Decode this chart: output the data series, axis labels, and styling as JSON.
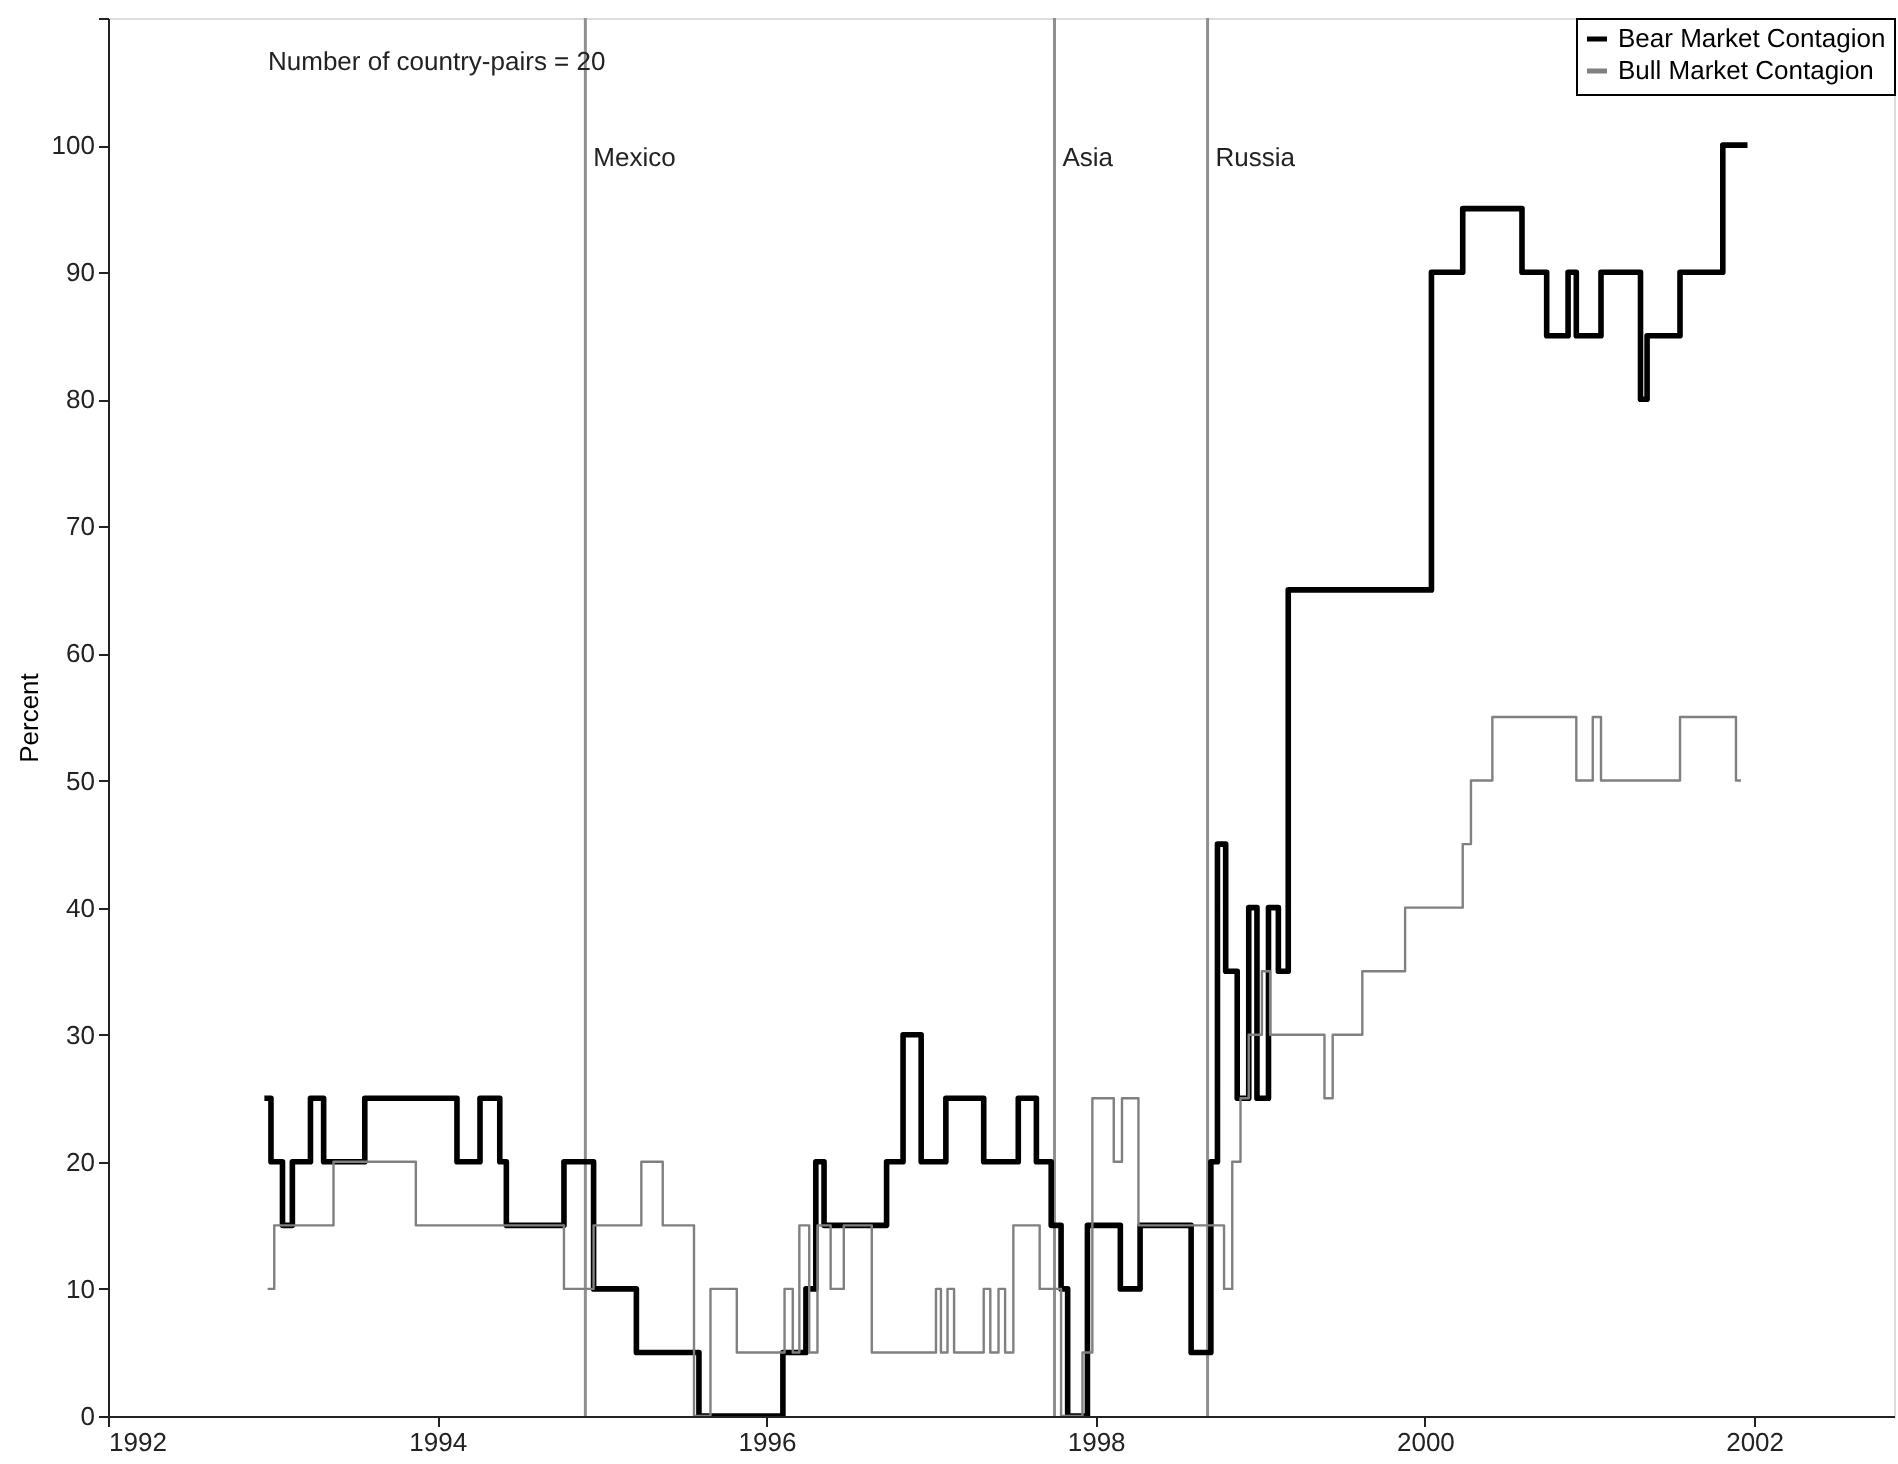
{
  "chart_data": {
    "type": "step",
    "ylabel": "Percent",
    "annotations": [
      "Number of country-pairs = 20"
    ],
    "xlim": [
      1992,
      2002.85
    ],
    "xticks": [
      1992,
      1994,
      1996,
      1998,
      2000,
      2002
    ],
    "ylim": [
      0,
      110
    ],
    "yticks": [
      0,
      10,
      20,
      30,
      40,
      50,
      60,
      70,
      80,
      90,
      100,
      {
        "value": 110,
        "label": null
      }
    ],
    "grid": false,
    "legend": "top right",
    "marker": "none",
    "line_style": "solid",
    "ref_lines": [
      {
        "axis": "x",
        "value": 1994.9,
        "label": "Mexico",
        "color": "#909090"
      },
      {
        "axis": "x",
        "value": 1997.75,
        "label": "Asia",
        "color": "#909090"
      },
      {
        "axis": "x",
        "value": 1998.68,
        "label": "Russia",
        "color": "#909090"
      }
    ],
    "series": [
      {
        "name": "Bear Market Contagion",
        "color": "#000000",
        "x": [
          1992.95,
          1992.99,
          1993.06,
          1993.12,
          1993.23,
          1993.31,
          1993.56,
          1994.12,
          1994.26,
          1994.38,
          1994.42,
          1994.77,
          1994.95,
          1995.21,
          1995.59,
          1996.1,
          1996.24,
          1996.3,
          1996.35,
          1996.73,
          1996.83,
          1996.94,
          1997.09,
          1997.32,
          1997.53,
          1997.64,
          1997.73,
          1997.79,
          1997.83,
          1997.95,
          1998.15,
          1998.27,
          1998.58,
          1998.7,
          1998.74,
          1998.79,
          1998.86,
          1998.93,
          1998.98,
          1999.05,
          1999.11,
          1999.17,
          2000.04,
          2000.23,
          2000.59,
          2000.74,
          2000.87,
          2000.92,
          2001.07,
          2001.31,
          2001.35,
          2001.55,
          2001.81,
          2001.96
        ],
        "values": [
          25,
          20,
          15,
          20,
          25,
          20,
          25,
          20,
          25,
          20,
          15,
          20,
          10,
          5,
          0,
          5,
          10,
          20,
          15,
          20,
          30,
          20,
          25,
          20,
          25,
          20,
          15,
          10,
          0,
          15,
          10,
          15,
          5,
          20,
          45,
          35,
          25,
          40,
          25,
          40,
          35,
          65,
          90,
          95,
          90,
          85,
          90,
          85,
          90,
          80,
          85,
          90,
          100,
          100
        ]
      },
      {
        "name": "Bull Market Contagion",
        "color": "#808080",
        "x": [
          1992.97,
          1993.01,
          1993.37,
          1993.87,
          1994.77,
          1994.95,
          1995.24,
          1995.37,
          1995.56,
          1995.66,
          1995.82,
          1996.11,
          1996.16,
          1996.2,
          1996.26,
          1996.31,
          1996.39,
          1996.47,
          1996.64,
          1997.03,
          1997.06,
          1997.1,
          1997.14,
          1997.32,
          1997.36,
          1997.41,
          1997.45,
          1997.5,
          1997.66,
          1997.79,
          1997.92,
          1997.98,
          1998.11,
          1998.16,
          1998.26,
          1998.78,
          1998.83,
          1998.88,
          1998.93,
          1999.01,
          1999.06,
          1999.39,
          1999.44,
          1999.62,
          1999.88,
          2000.23,
          2000.28,
          2000.41,
          2000.92,
          2001.02,
          2001.07,
          2001.55,
          2001.89,
          2001.92
        ],
        "values": [
          10,
          15,
          20,
          15,
          10,
          15,
          20,
          15,
          0,
          10,
          5,
          10,
          5,
          15,
          5,
          15,
          10,
          15,
          5,
          10,
          5,
          10,
          5,
          10,
          5,
          10,
          5,
          15,
          10,
          0,
          5,
          25,
          20,
          25,
          15,
          10,
          20,
          25,
          30,
          35,
          30,
          25,
          30,
          35,
          40,
          45,
          50,
          55,
          50,
          55,
          50,
          55,
          50,
          50
        ]
      }
    ]
  }
}
